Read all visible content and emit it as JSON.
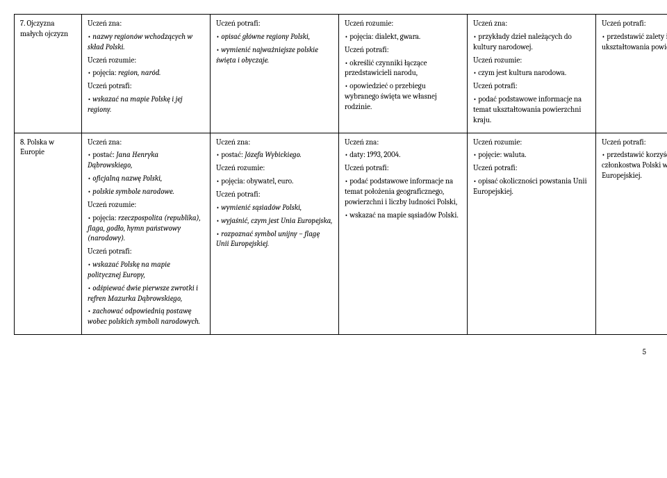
{
  "rows": [
    {
      "label": "7. Ojczyzna małych ojczyzn",
      "cells": [
        {
          "blocks": [
            {
              "lead": "Uczeń zna:",
              "items": [
                "• <i>nazwy regionów wchodzących w skład Polski.</i>"
              ]
            },
            {
              "lead": "Uczeń rozumie:",
              "items": [
                "• pojęcia: <i>region, naród.</i>"
              ]
            },
            {
              "lead": "Uczeń potrafi:",
              "items": [
                "• <i>wskazać na mapie Polskę i jej regiony.</i>"
              ]
            }
          ]
        },
        {
          "blocks": [
            {
              "lead": "Uczeń potrafi:",
              "items": [
                "• <i>opisać główne regiony Polski,</i>",
                "• <i>wymienić najważniejsze polskie święta i obyczaje.</i>"
              ]
            }
          ]
        },
        {
          "blocks": [
            {
              "lead": "Uczeń rozumie:",
              "items": [
                "• pojęcia: dialekt, gwara."
              ]
            },
            {
              "lead": "Uczeń potrafi:",
              "items": [
                "• określić czynniki łączące przedstawicieli narodu,",
                "• opowiedzieć o przebiegu wybranego święta we własnej rodzinie."
              ]
            }
          ]
        },
        {
          "blocks": [
            {
              "lead": "Uczeń zna:",
              "items": [
                "• przykłady dzieł należących do kultury narodowej."
              ]
            },
            {
              "lead": "Uczeń rozumie:",
              "items": [
                "• czym jest kultura narodowa."
              ]
            },
            {
              "lead": "Uczeń potrafi:",
              "items": [
                "• podać podstawowe informacje na temat ukształtowania powierzchni kraju."
              ]
            }
          ]
        },
        {
          "blocks": [
            {
              "lead": "Uczeń potrafi:",
              "items": [
                "• przedstawić zalety i wady ukształtowania powierzchni Polski."
              ]
            }
          ]
        }
      ]
    },
    {
      "label": "8. Polska w Europie",
      "cells": [
        {
          "blocks": [
            {
              "lead": "Uczeń zna:",
              "items": [
                "• postać: <i>Jana Henryka Dąbrowskiego,</i>",
                "• <i>oficjalną nazwę Polski,</i>",
                "• <i>polskie symbole narodowe.</i>"
              ]
            },
            {
              "lead": "Uczeń rozumie:",
              "items": [
                "• pojęcia: <i>rzeczpospolita (republika), flaga, godło, hymn państwowy (narodowy).</i>"
              ]
            },
            {
              "lead": "Uczeń potrafi:",
              "items": [
                "• <i>wskazać Polskę na mapie politycznej Europy,</i>",
                "• <i>odśpiewać dwie pierwsze zwrotki i refren Mazurka Dąbrowskiego,</i>",
                "• <i>zachować odpowiednią postawę wobec polskich symboli narodowych.</i>"
              ]
            }
          ]
        },
        {
          "blocks": [
            {
              "lead": "Uczeń zna:",
              "items": [
                "• postać: <i>Józefa Wybickiego.</i>"
              ]
            },
            {
              "lead": "Uczeń rozumie:",
              "items": [
                "• pojęcia: obywatel, euro."
              ]
            },
            {
              "lead": "Uczeń potrafi:",
              "items": [
                "• <i>wymienić sąsiadów Polski,</i>",
                "• <i>wyjaśnić, czym jest Unia Europejska,</i>",
                "• <i>rozpoznać symbol unijny – flagę Unii Europejskiej.</i>"
              ]
            }
          ]
        },
        {
          "blocks": [
            {
              "lead": "Uczeń zna:",
              "items": [
                "• daty: 1993, 2004."
              ]
            },
            {
              "lead": "Uczeń potrafi:",
              "items": [
                "• podać podstawowe informacje na temat położenia geograficznego, powierzchni i liczby ludności Polski,",
                "• wskazać na mapie sąsiadów Polski."
              ]
            }
          ]
        },
        {
          "blocks": [
            {
              "lead": "Uczeń rozumie:",
              "items": [
                "• pojęcie: waluta."
              ]
            },
            {
              "lead": "Uczeń potrafi:",
              "items": [
                "• opisać okoliczności powstania Unii Europejskiej."
              ]
            }
          ]
        },
        {
          "blocks": [
            {
              "lead": "Uczeń potrafi:",
              "items": [
                "• przedstawić korzyści wynikające z członkostwa Polski w Unii Europejskiej."
              ]
            }
          ]
        }
      ]
    }
  ],
  "pageNumber": "5"
}
